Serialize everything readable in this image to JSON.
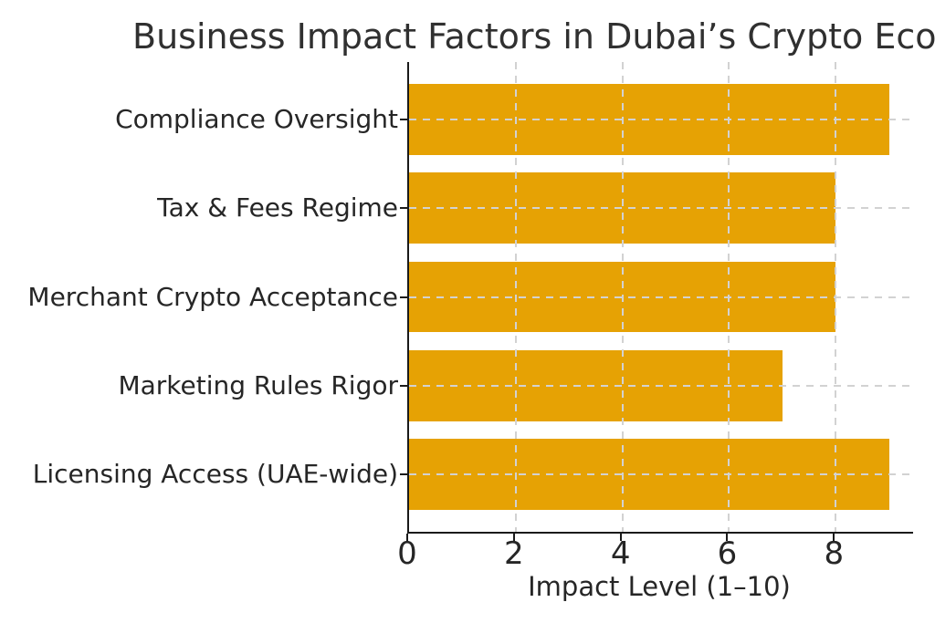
{
  "chart_data": {
    "type": "bar",
    "orientation": "horizontal",
    "title": "Business Impact Factors in Dubai’s Crypto Eco",
    "title_note": "title text is clipped at the right edge of the image",
    "categories": [
      "Compliance Oversight",
      "Tax & Fees Regime",
      "Merchant Crypto Acceptance",
      "Marketing Rules Rigor",
      "Licensing Access (UAE-wide)"
    ],
    "values": [
      9,
      8,
      8,
      7,
      9
    ],
    "xlabel": "Impact Level (1–10)",
    "ylabel": "",
    "xlim": [
      0,
      9.45
    ],
    "xticks": [
      0,
      2,
      4,
      6,
      8
    ],
    "grid": "dashed gridlines on both axes, drawn above bars",
    "legend": "none",
    "colors": {
      "bar": "#E6A204",
      "grid": "#D2D2D2",
      "axis": "#1A1A1A",
      "text": "#262626",
      "background": "#FFFFFF"
    }
  }
}
